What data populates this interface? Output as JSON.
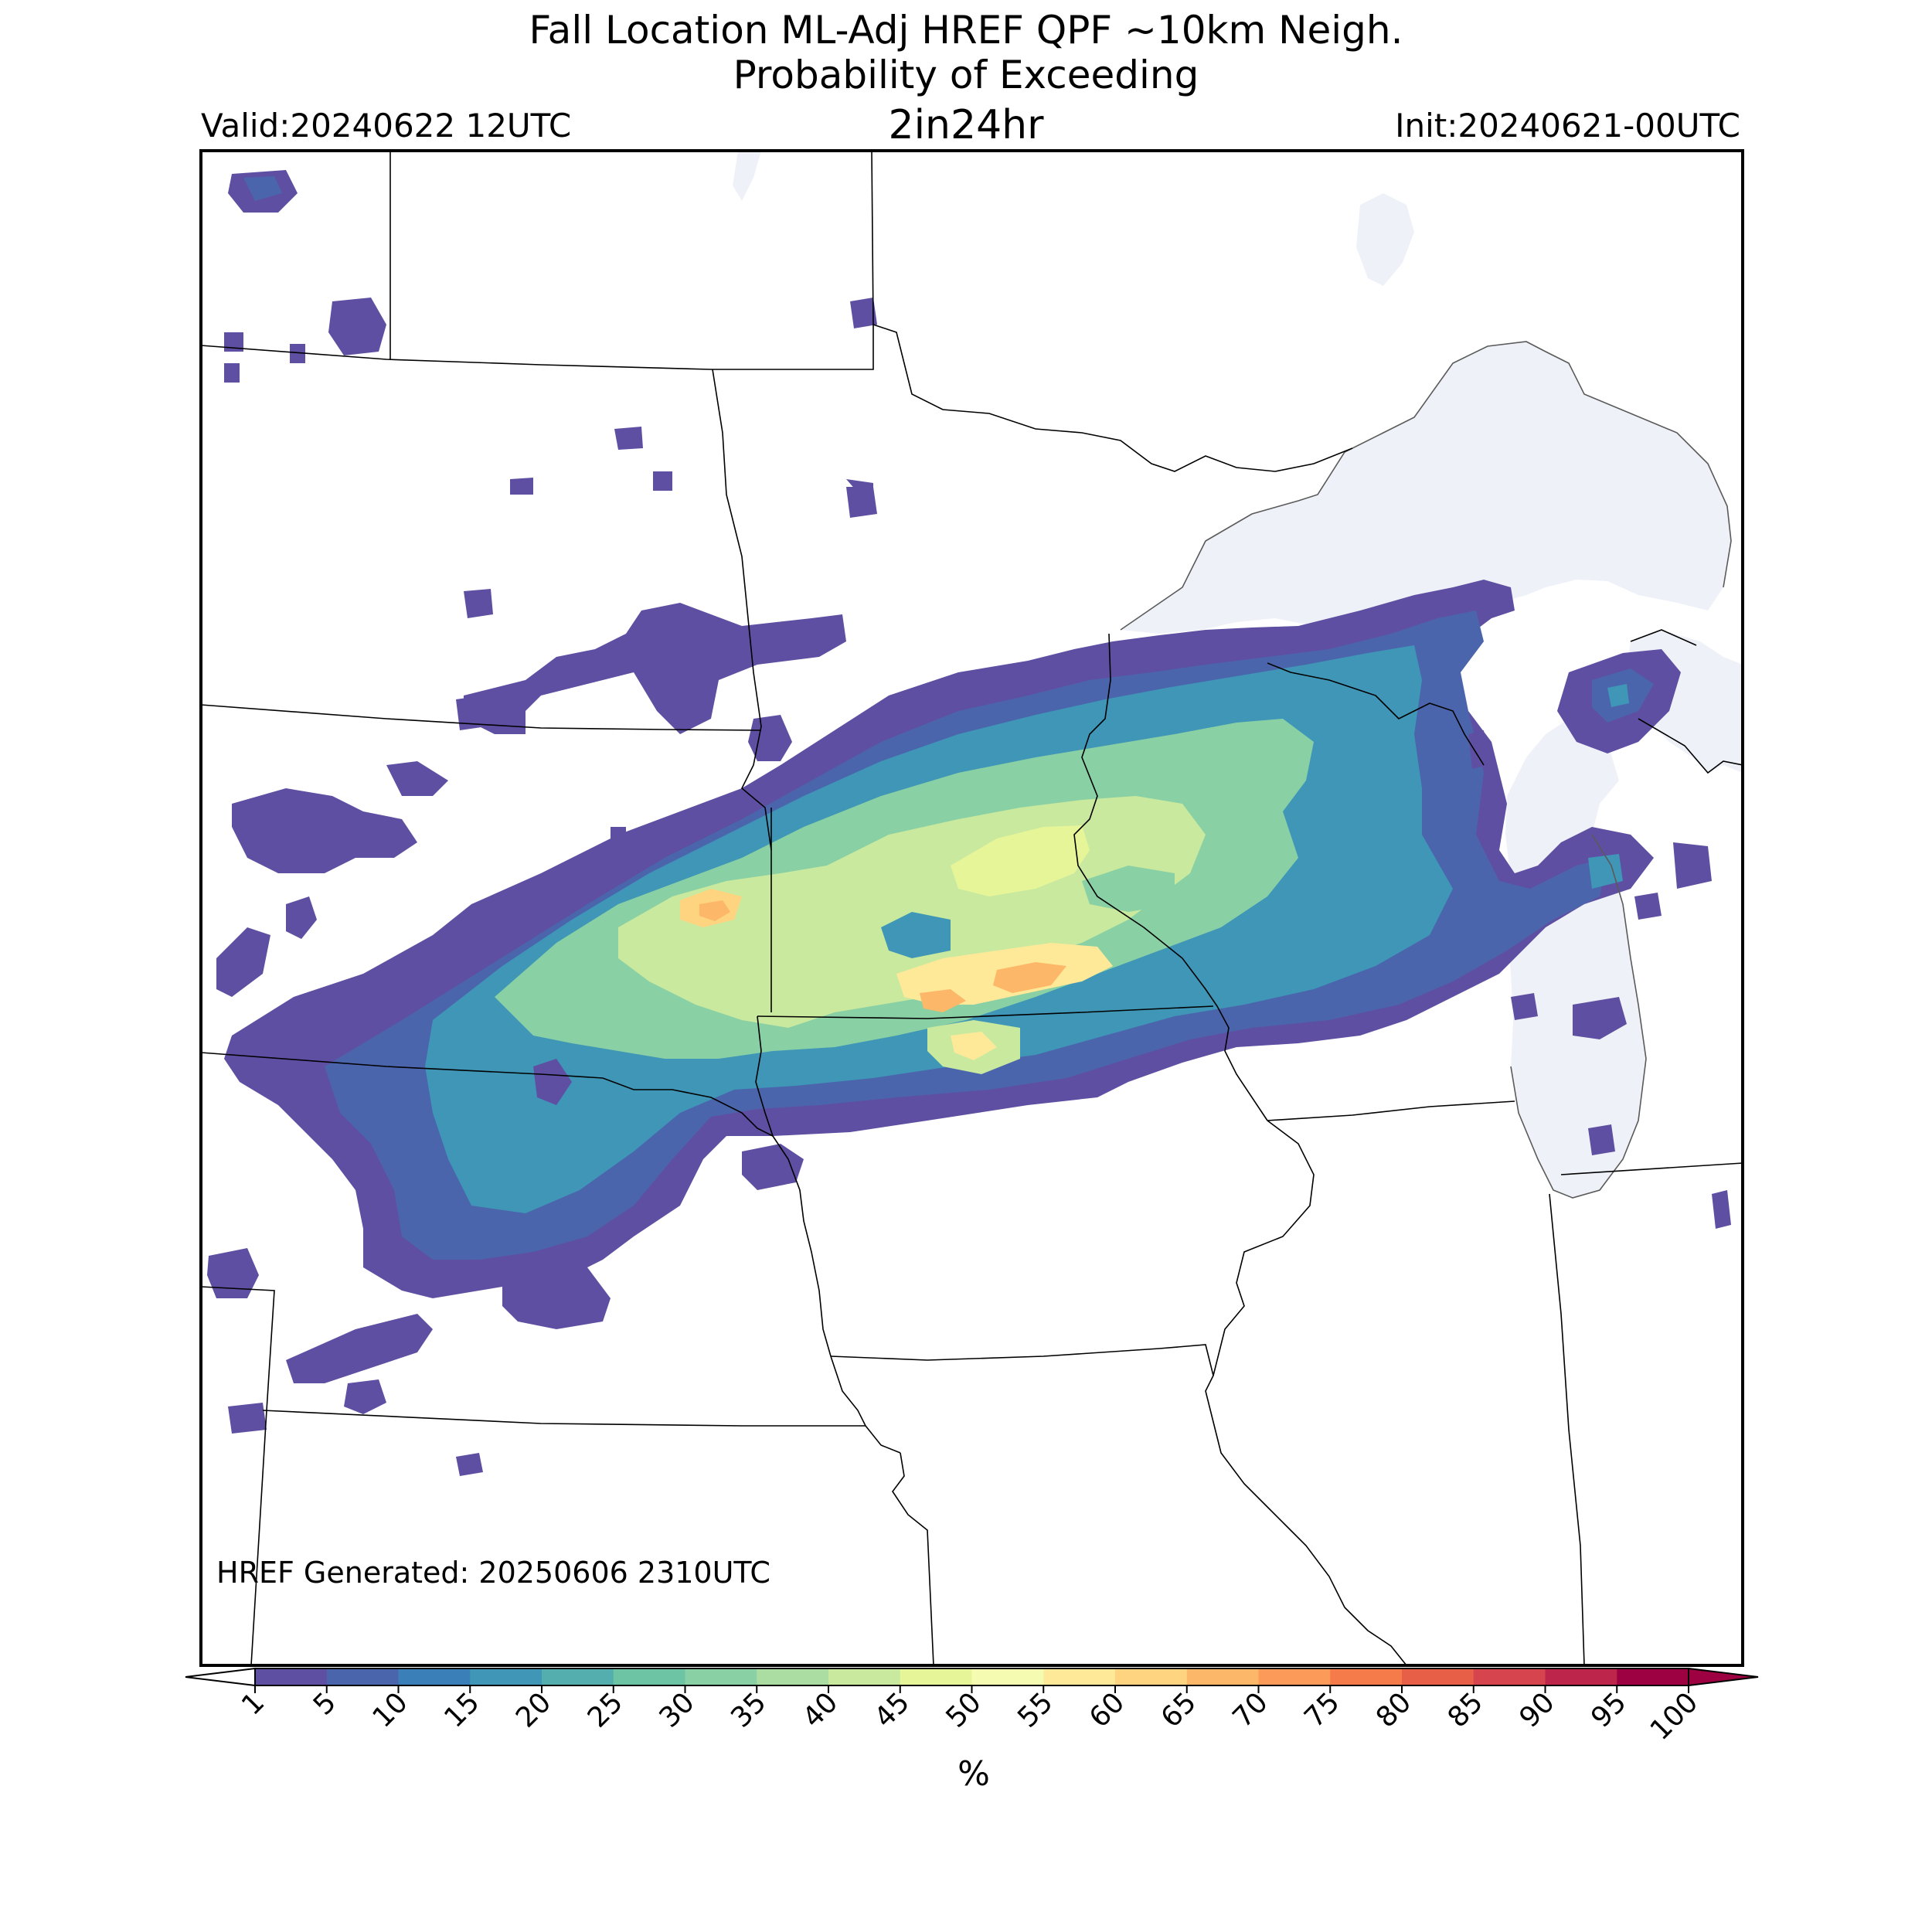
{
  "title": {
    "line1": "Fall Location ML-Adj HREF QPF ~10km Neigh.",
    "line2": "Probability of Exceeding",
    "line3": "2in24hr"
  },
  "valid": "Valid:20240622 12UTC",
  "init": "Init:20240621-00UTC",
  "generated": "HREF Generated: 20250606 2310UTC",
  "colorbar": {
    "label": "%",
    "ticks": [
      "1",
      "5",
      "10",
      "15",
      "20",
      "25",
      "30",
      "35",
      "40",
      "45",
      "50",
      "55",
      "60",
      "65",
      "70",
      "75",
      "80",
      "85",
      "90",
      "95",
      "100"
    ],
    "colors": [
      "#5e4fa2",
      "#4b65ad",
      "#3b7fb9",
      "#3f96b7",
      "#54aead",
      "#6cc4a4",
      "#89d0a4",
      "#abdda3",
      "#c9e99e",
      "#e6f598",
      "#f6fbb2",
      "#fee999",
      "#fed481",
      "#fdb768",
      "#fb9a59",
      "#f57b4a",
      "#e65f46",
      "#d6444e",
      "#bd254a",
      "#9e0142"
    ]
  },
  "map_colors": {
    "lake_fill": "#eef2f8",
    "border": "#000000",
    "lake_line": "#5a5a5a"
  }
}
